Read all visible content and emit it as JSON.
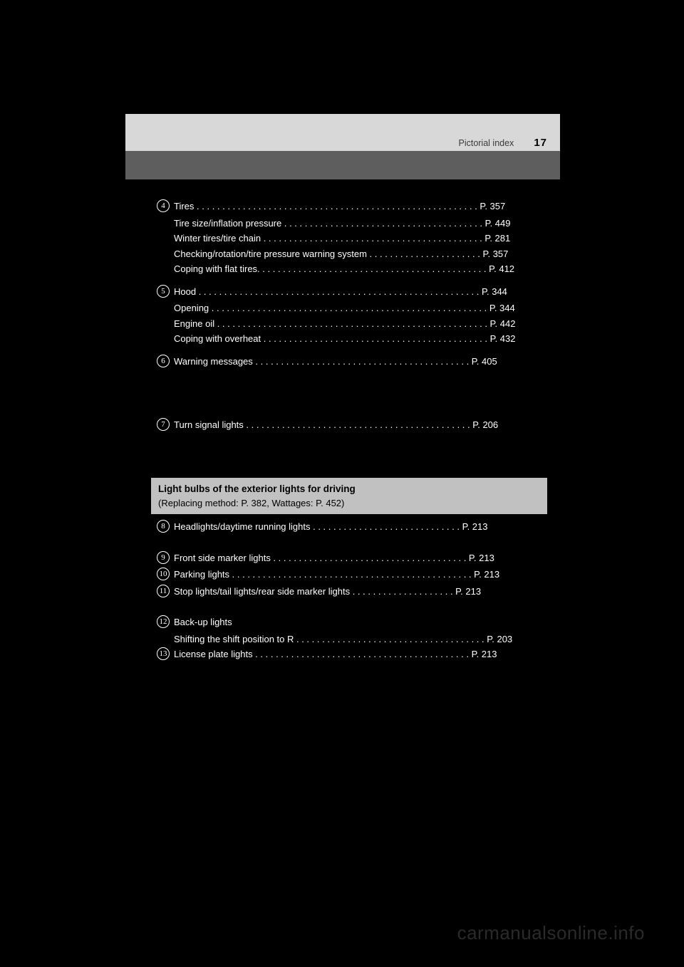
{
  "header": {
    "section": "Pictorial index",
    "page": "17"
  },
  "items": [
    {
      "num": "4",
      "main": "Tires . . . . . . . . . . . . . . . . . . . . . . . . . . . . . . . . . . . . . . . . . . . . . . . . . . . . . . . P. 357",
      "subs": [
        "Tire size/inflation pressure  . . . . . . . . . . . . . . . . . . . . . . . . . . . . . . . . . . . . . . . P. 449",
        "Winter tires/tire chain  . . . . . . . . . . . . . . . . . . . . . . . . . . . . . . . . . . . . . . . . . . . P. 281",
        "Checking/rotation/tire pressure warning system  . . . . . . . . . . . . . . . . . . . . . . P. 357",
        "Coping with flat tires. . . . . . . . . . . . . . . . . . . . . . . . . . . . . . . . . . . . . . . . . . . . . P. 412"
      ]
    },
    {
      "num": "5",
      "main": "Hood  . . . . . . . . . . . . . . . . . . . . . . . . . . . . . . . . . . . . . . . . . . . . . . . . . . . . . . . P. 344",
      "subs": [
        "Opening  . . . . . . . . . . . . . . . . . . . . . . . . . . . . . . . . . . . . . . . . . . . . . . . . . . . . . . P. 344",
        "Engine oil  . . . . . . . . . . . . . . . . . . . . . . . . . . . . . . . . . . . . . . . . . . . . . . . . . . . . . P. 442",
        "Coping with overheat . . . . . . . . . . . . . . . . . . . . . . . . . . . . . . . . . . . . . . . . . . . . P. 432"
      ]
    },
    {
      "num": "6",
      "main": "Warning messages  . . . . . . . . . . . . . . . . . . . . . . . . . . . . . . . . . . . . . . . . . . P. 405",
      "subs": []
    },
    {
      "num": "7",
      "main": "Turn signal lights  . . . . . . . . . . . . . . . . . . . . . . . . . . . . . . . . . . . . . . . . . . . . P. 206",
      "subs": []
    },
    {
      "num": "8",
      "main": "Headlights/daytime running lights  . . . . . . . . . . . . . . . . . . . . . . . . . . . . . P. 213",
      "subs": []
    },
    {
      "num": "9",
      "main": "Front side marker lights . . . . . . . . . . . . . . . . . . . . . . . . . . . . . . . . . . . . . . P. 213",
      "subs": []
    },
    {
      "num": "10",
      "main": "Parking lights  . . . . . . . . . . . . . . . . . . . . . . . . . . . . . . . . . . . . . . . . . . . . . . . P. 213",
      "subs": []
    },
    {
      "num": "11",
      "main": "Stop lights/tail lights/rear side marker lights . . . . . . . . . . . . . . . . . . . . P. 213",
      "subs": []
    },
    {
      "num": "12",
      "main": "Back-up lights",
      "subs": [
        "Shifting the shift position to R  . . . . . . . . . . . . . . . . . . . . . . . . . . . . . . . . . . . . . P. 203"
      ]
    },
    {
      "num": "13",
      "main": "License plate lights . . . . . . . . . . . . . . . . . . . . . . . . . . . . . . . . . . . . . . . . . . P. 213",
      "subs": []
    }
  ],
  "info_box": {
    "title": "Light bulbs of the exterior lights for driving",
    "sub": "(Replacing method: P. 382, Wattages: P. 452)"
  },
  "watermark": "carmanualsonline.info"
}
